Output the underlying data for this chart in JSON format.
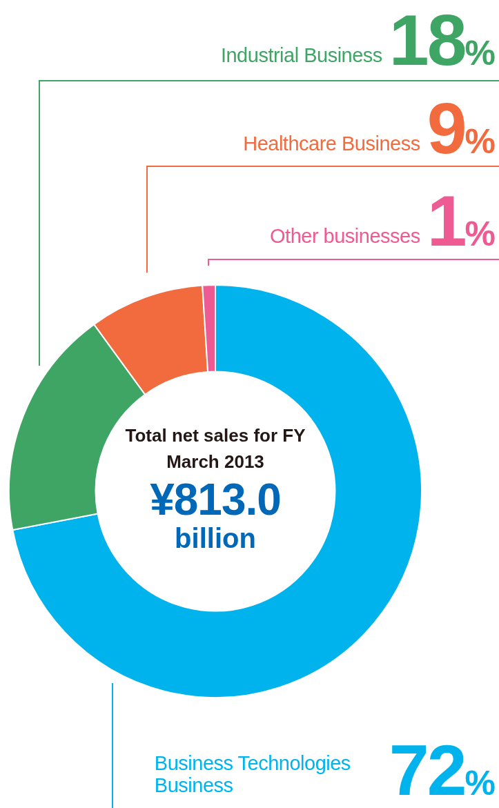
{
  "chart_data": {
    "type": "donut",
    "title": "Total net sales for FY March 2013",
    "annotations": [
      "¥813.0",
      "billion"
    ],
    "categories": [
      "Business Technologies Business",
      "Industrial Business",
      "Healthcare Business",
      "Other businesses"
    ],
    "values": [
      72,
      18,
      9,
      1
    ],
    "value_labels": [
      "72%",
      "18%",
      "9%",
      "1%"
    ],
    "colors": [
      "#00b3ec",
      "#3fa565",
      "#f26b3f",
      "#ee5a92"
    ],
    "legend": false
  }
}
